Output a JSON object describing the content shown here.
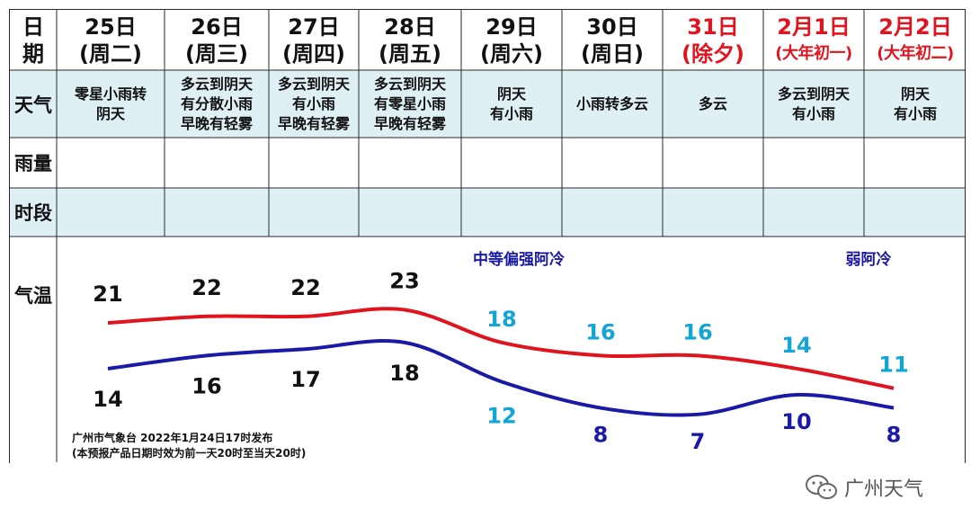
{
  "header": {
    "corner_label": [
      "日",
      "期"
    ],
    "dates": [
      {
        "date": "25日",
        "sub": "(周二)",
        "highlight": false
      },
      {
        "date": "26日",
        "sub": "(周三)",
        "highlight": false
      },
      {
        "date": "27日",
        "sub": "(周四)",
        "highlight": false
      },
      {
        "date": "28日",
        "sub": "(周五)",
        "highlight": false
      },
      {
        "date": "29日",
        "sub": "(周六)",
        "highlight": false
      },
      {
        "date": "30日",
        "sub": "(周日)",
        "highlight": false
      },
      {
        "date": "31日",
        "sub": "(除夕)",
        "highlight": true
      },
      {
        "date": "2月1日",
        "sub": "(大年初一)",
        "highlight": true
      },
      {
        "date": "2月2日",
        "sub": "(大年初二)",
        "highlight": true
      }
    ]
  },
  "rows": {
    "weather_label": "天气",
    "rain_label": "雨量",
    "period_label": "时段",
    "temp_label": "气温"
  },
  "weather": [
    "零星小雨转\n阴天",
    "多云到阴天\n有分散小雨\n早晚有轻雾",
    "多云到阴天\n有小雨\n早晚有轻雾",
    "多云到阴天\n有零星小雨\n早晚有轻雾",
    "阴天\n有小雨",
    "小雨转多云",
    "多云",
    "多云到阴天\n有小雨",
    "阴天\n有小雨"
  ],
  "chart_data": {
    "type": "line",
    "categories": [
      "25日",
      "26日",
      "27日",
      "28日",
      "29日",
      "30日",
      "31日",
      "2月1日",
      "2月2日"
    ],
    "series": [
      {
        "name": "",
        "values": [
          21,
          22,
          22,
          23,
          18,
          16,
          16,
          14,
          11
        ],
        "color": "#e0141e"
      },
      {
        "name": "",
        "values": [
          14,
          16,
          17,
          18,
          12,
          8,
          7,
          10,
          8
        ],
        "color": "#1a1aa6"
      }
    ],
    "label_colors": {
      "normal": "#111111",
      "cold_high": "#12a5d6",
      "cold_low": "#1a1aa6"
    },
    "annotations": [
      {
        "text": "中等偏强阿冷",
        "color": "#1a1aa6"
      },
      {
        "text": "弱阿冷",
        "color": "#1a1aa6"
      }
    ]
  },
  "footnote": {
    "line1": "广州市气象台 2022年1月24日17时发布",
    "line2": "(本预报产品日期时效为前一天20时至当天20时)"
  },
  "watermark": {
    "text": "广州天气"
  }
}
